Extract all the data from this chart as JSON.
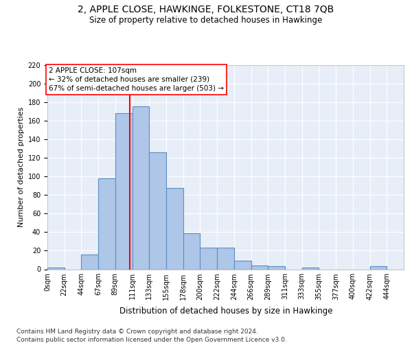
{
  "title": "2, APPLE CLOSE, HAWKINGE, FOLKESTONE, CT18 7QB",
  "subtitle": "Size of property relative to detached houses in Hawkinge",
  "xlabel": "Distribution of detached houses by size in Hawkinge",
  "ylabel": "Number of detached properties",
  "bar_labels": [
    "0sqm",
    "22sqm",
    "44sqm",
    "67sqm",
    "89sqm",
    "111sqm",
    "133sqm",
    "155sqm",
    "178sqm",
    "200sqm",
    "222sqm",
    "244sqm",
    "266sqm",
    "289sqm",
    "311sqm",
    "333sqm",
    "355sqm",
    "377sqm",
    "400sqm",
    "422sqm",
    "444sqm"
  ],
  "bar_values": [
    2,
    0,
    16,
    98,
    168,
    176,
    126,
    88,
    39,
    23,
    23,
    9,
    4,
    3,
    0,
    2,
    0,
    0,
    0,
    3,
    0
  ],
  "bar_color": "#aec6e8",
  "bar_edge_color": "#5a8fc2",
  "background_color": "#e8eef8",
  "grid_color": "#ffffff",
  "annotation_line1": "2 APPLE CLOSE: 107sqm",
  "annotation_line2": "← 32% of detached houses are smaller (239)",
  "annotation_line3": "67% of semi-detached houses are larger (503) →",
  "vline_color": "red",
  "ylim_max": 220,
  "yticks": [
    0,
    20,
    40,
    60,
    80,
    100,
    120,
    140,
    160,
    180,
    200,
    220
  ],
  "footnote1": "Contains HM Land Registry data © Crown copyright and database right 2024.",
  "footnote2": "Contains public sector information licensed under the Open Government Licence v3.0.",
  "bin_width": 22,
  "property_sqm": 107,
  "title_fontsize": 10,
  "subtitle_fontsize": 8.5,
  "ylabel_fontsize": 8,
  "xlabel_fontsize": 8.5,
  "tick_fontsize": 7,
  "annotation_fontsize": 7.5,
  "footnote_fontsize": 6.5
}
